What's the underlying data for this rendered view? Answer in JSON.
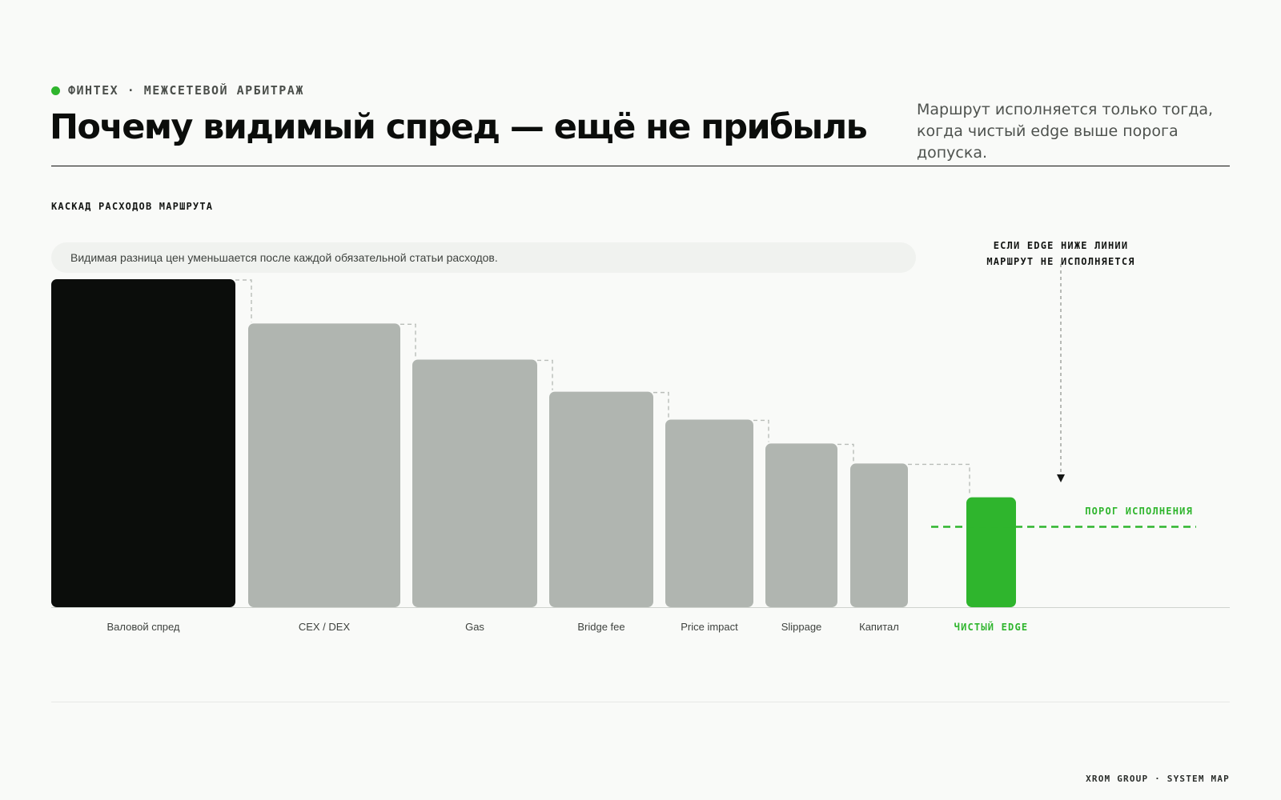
{
  "header": {
    "eyebrow": "ФИНТЕХ · МЕЖСЕТЕВОЙ АРБИТРАЖ",
    "title": "Почему видимый спред — ещё не прибыль",
    "lead": "Маршрут исполняется только тогда, когда чистый edge выше порога допуска."
  },
  "section_label": "КАСКАД РАСХОДОВ МАРШРУТА",
  "note": "Видимая разница цен уменьшается после каждой обязательной статьи расходов.",
  "annotation": {
    "line1": "ЕСЛИ EDGE НИЖЕ ЛИНИИ",
    "line2": "МАРШРУТ НЕ ИСПОЛНЯЕТСЯ"
  },
  "threshold_label": "ПОРОГ ИСПОЛНЕНИЯ",
  "footer": "XROM GROUP · SYSTEM MAP",
  "colors": {
    "accent": "#2fb52d",
    "gross": "#0b0d0b",
    "cost": "#b0b5b0"
  },
  "chart_data": {
    "type": "bar",
    "subtype": "waterfall",
    "categories": [
      "Валовой спред",
      "CEX / DEX",
      "Gas",
      "Bridge fee",
      "Price impact",
      "Slippage",
      "Капитал",
      "ЧИСТЫЙ EDGE"
    ],
    "values": [
      100,
      86.5,
      75.5,
      65.7,
      57.2,
      49.9,
      43.8,
      33.5
    ],
    "threshold": 24.5,
    "ylim": [
      0,
      100
    ],
    "title": "",
    "xlabel": "",
    "ylabel": ""
  }
}
